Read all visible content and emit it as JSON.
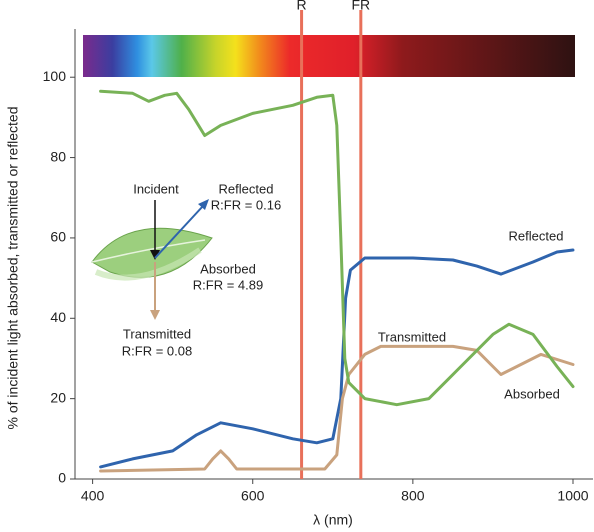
{
  "chart_data": {
    "type": "line",
    "xlabel": "λ (nm)",
    "ylabel": "% of incident light absorbed, transmitted or reflected",
    "xlim": [
      378,
      1025
    ],
    "ylim": [
      0,
      112
    ],
    "xticks": [
      400,
      600,
      800,
      1000
    ],
    "yticks": [
      0,
      20,
      40,
      60,
      80,
      100
    ],
    "grid": false,
    "series": [
      {
        "name": "Reflected",
        "color": "#2f64ad",
        "x": [
          410,
          450,
          500,
          530,
          560,
          600,
          650,
          680,
          700,
          710,
          716,
          722,
          740,
          800,
          850,
          880,
          910,
          950,
          980,
          1000
        ],
        "values": [
          3,
          5,
          7,
          11,
          14,
          12.5,
          10,
          9,
          10,
          20,
          45,
          52,
          55,
          55,
          54.5,
          53,
          51,
          54,
          56.5,
          57
        ]
      },
      {
        "name": "Transmitted",
        "color": "#c9a27e",
        "x": [
          410,
          540,
          550,
          560,
          570,
          580,
          690,
          705,
          712,
          720,
          740,
          760,
          850,
          880,
          900,
          910,
          930,
          960,
          1000
        ],
        "values": [
          2,
          2.5,
          5,
          7,
          5,
          2.5,
          2.5,
          6,
          20,
          26,
          31,
          33,
          33,
          32,
          28,
          26,
          28,
          31,
          28.5
        ]
      },
      {
        "name": "Absorbed",
        "color": "#78b257",
        "x": [
          410,
          450,
          470,
          490,
          505,
          520,
          540,
          560,
          600,
          650,
          680,
          700,
          705,
          710,
          715,
          720,
          740,
          780,
          820,
          860,
          900,
          920,
          950,
          980,
          1000
        ],
        "values": [
          96.5,
          96,
          94,
          95.5,
          96,
          92,
          85.5,
          88,
          91,
          93,
          95,
          95.5,
          88,
          60,
          30,
          24,
          20,
          18.5,
          20,
          28,
          36,
          38.5,
          36,
          28,
          23
        ]
      }
    ],
    "markers": [
      {
        "label": "R",
        "x": 661
      },
      {
        "label": "FR",
        "x": 735
      }
    ],
    "marker_color": "#e8705a",
    "annotations": [
      "Incident",
      "Reflected",
      "R:FR = 0.16",
      "Absorbed",
      "R:FR = 4.89",
      "Transmitted",
      "R:FR = 0.08"
    ]
  }
}
